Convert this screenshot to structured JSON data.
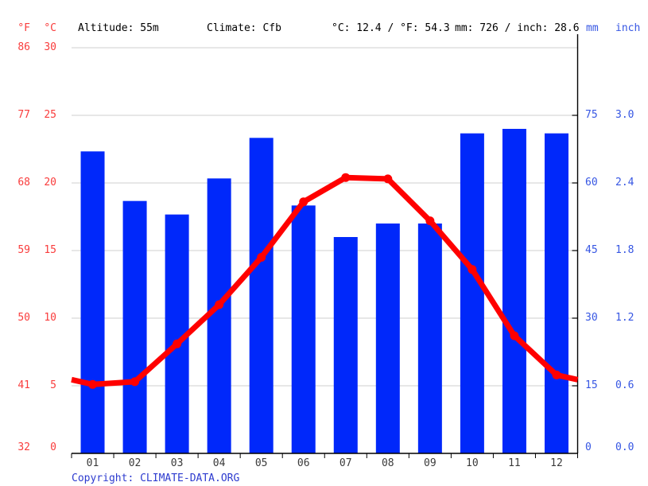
{
  "header": {
    "f_unit": "°F",
    "c_unit": "°C",
    "altitude": "Altitude: 55m",
    "climate": "Climate: Cfb",
    "temp_summary": "°C: 12.4 / °F: 54.3",
    "precip_summary": "mm: 726 / inch: 28.6",
    "mm_unit": "mm",
    "inch_unit": "inch"
  },
  "footer": {
    "copyright_prefix": "Copyright: ",
    "copyright_link": "CLIMATE-DATA.ORG"
  },
  "colors": {
    "bar_blue": "#0028fa",
    "line_red": "#ff0000",
    "axis_red_text": "#f93c3c",
    "axis_blue_text": "#3656e3",
    "grid_gray": "#cfcfcf",
    "axis_black": "#000000",
    "copyright_blue": "#2d3bcf"
  },
  "chart_data": {
    "type": "combo",
    "title": "Climate graph: altitude 55m, climate Cfb, mean 12.4°C / 54.3°F, annual precipitation 726mm / 28.6inch",
    "categories": [
      "01",
      "02",
      "03",
      "04",
      "05",
      "06",
      "07",
      "08",
      "09",
      "10",
      "11",
      "12"
    ],
    "grid": true,
    "legend_position": "none",
    "series": [
      {
        "name": "Precipitation",
        "type": "bar",
        "unit": "mm",
        "values": [
          67,
          56,
          53,
          61,
          70,
          55,
          48,
          51,
          51,
          71,
          72,
          71
        ],
        "annual_total_mm": 726,
        "annual_total_inch": 28.6,
        "ylim": [
          0,
          90
        ],
        "ticks_mm": [
          "75",
          "60",
          "45",
          "30",
          "15",
          "0"
        ],
        "ticks_inch": [
          "3.0",
          "2.4",
          "1.8",
          "1.2",
          "0.6",
          "0.0"
        ]
      },
      {
        "name": "Temperature",
        "type": "line",
        "unit": "°C",
        "values": [
          5.1,
          5.3,
          8.1,
          11.0,
          14.5,
          18.6,
          20.4,
          20.3,
          17.2,
          13.6,
          8.7,
          5.8
        ],
        "mean_c": 12.4,
        "mean_f": 54.3,
        "ylim": [
          0,
          30
        ],
        "ticks_c": [
          "30",
          "25",
          "20",
          "15",
          "10",
          "5",
          "0"
        ],
        "ticks_f": [
          "86",
          "77",
          "68",
          "59",
          "50",
          "41",
          "32"
        ]
      }
    ]
  }
}
